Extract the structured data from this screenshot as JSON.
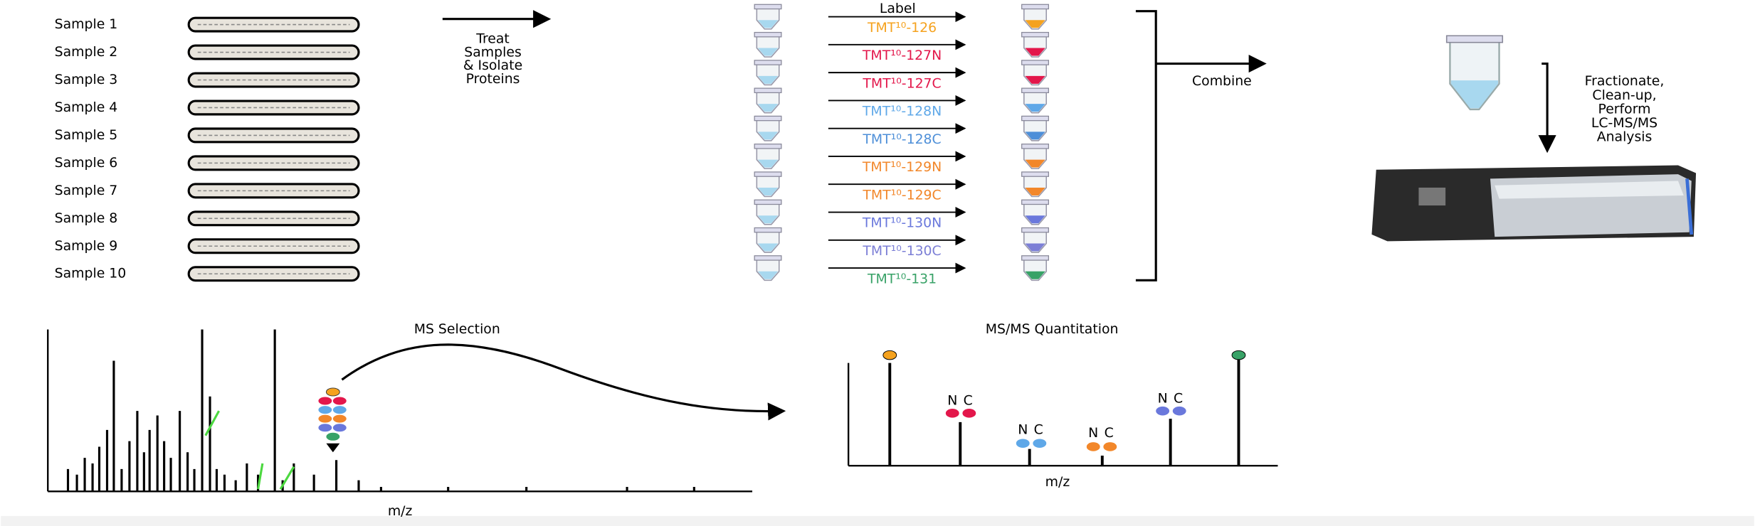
{
  "samples": [
    "Sample 1",
    "Sample 2",
    "Sample 3",
    "Sample 4",
    "Sample 5",
    "Sample 6",
    "Sample 7",
    "Sample 8",
    "Sample 9",
    "Sample 10"
  ],
  "treat_step": [
    "Treat",
    "Samples",
    "& Isolate",
    "Proteins"
  ],
  "label_header": "Label",
  "tmt_labels": [
    {
      "text": "TMT¹⁰-126",
      "color": "#f5a21e"
    },
    {
      "text": "TMT¹⁰-127N",
      "color": "#e3174b"
    },
    {
      "text": "TMT¹⁰-127C",
      "color": "#e3174b"
    },
    {
      "text": "TMT¹⁰-128N",
      "color": "#5fa8e8"
    },
    {
      "text": "TMT¹⁰-128C",
      "color": "#4e8fd8"
    },
    {
      "text": "TMT¹⁰-129N",
      "color": "#f2872a"
    },
    {
      "text": "TMT¹⁰-129C",
      "color": "#f2872a"
    },
    {
      "text": "TMT¹⁰-130N",
      "color": "#6a78dc"
    },
    {
      "text": "TMT¹⁰-130C",
      "color": "#7c7fd6"
    },
    {
      "text": "TMT¹⁰-131",
      "color": "#38a267"
    }
  ],
  "combine": "Combine",
  "analysis_step": [
    "Fractionate,",
    "Clean-up,",
    "Perform",
    "LC-MS/MS",
    "Analysis"
  ],
  "ms_selection": {
    "title": "MS Selection",
    "x_label": "m/z"
  },
  "msms_quantitation": {
    "title": "MS/MS Quantitation",
    "x_label": "m/z",
    "pair_labels": [
      [
        "N",
        "C"
      ],
      [
        "N",
        "C"
      ],
      [
        "N",
        "C"
      ],
      [
        "N",
        "C"
      ]
    ]
  }
}
